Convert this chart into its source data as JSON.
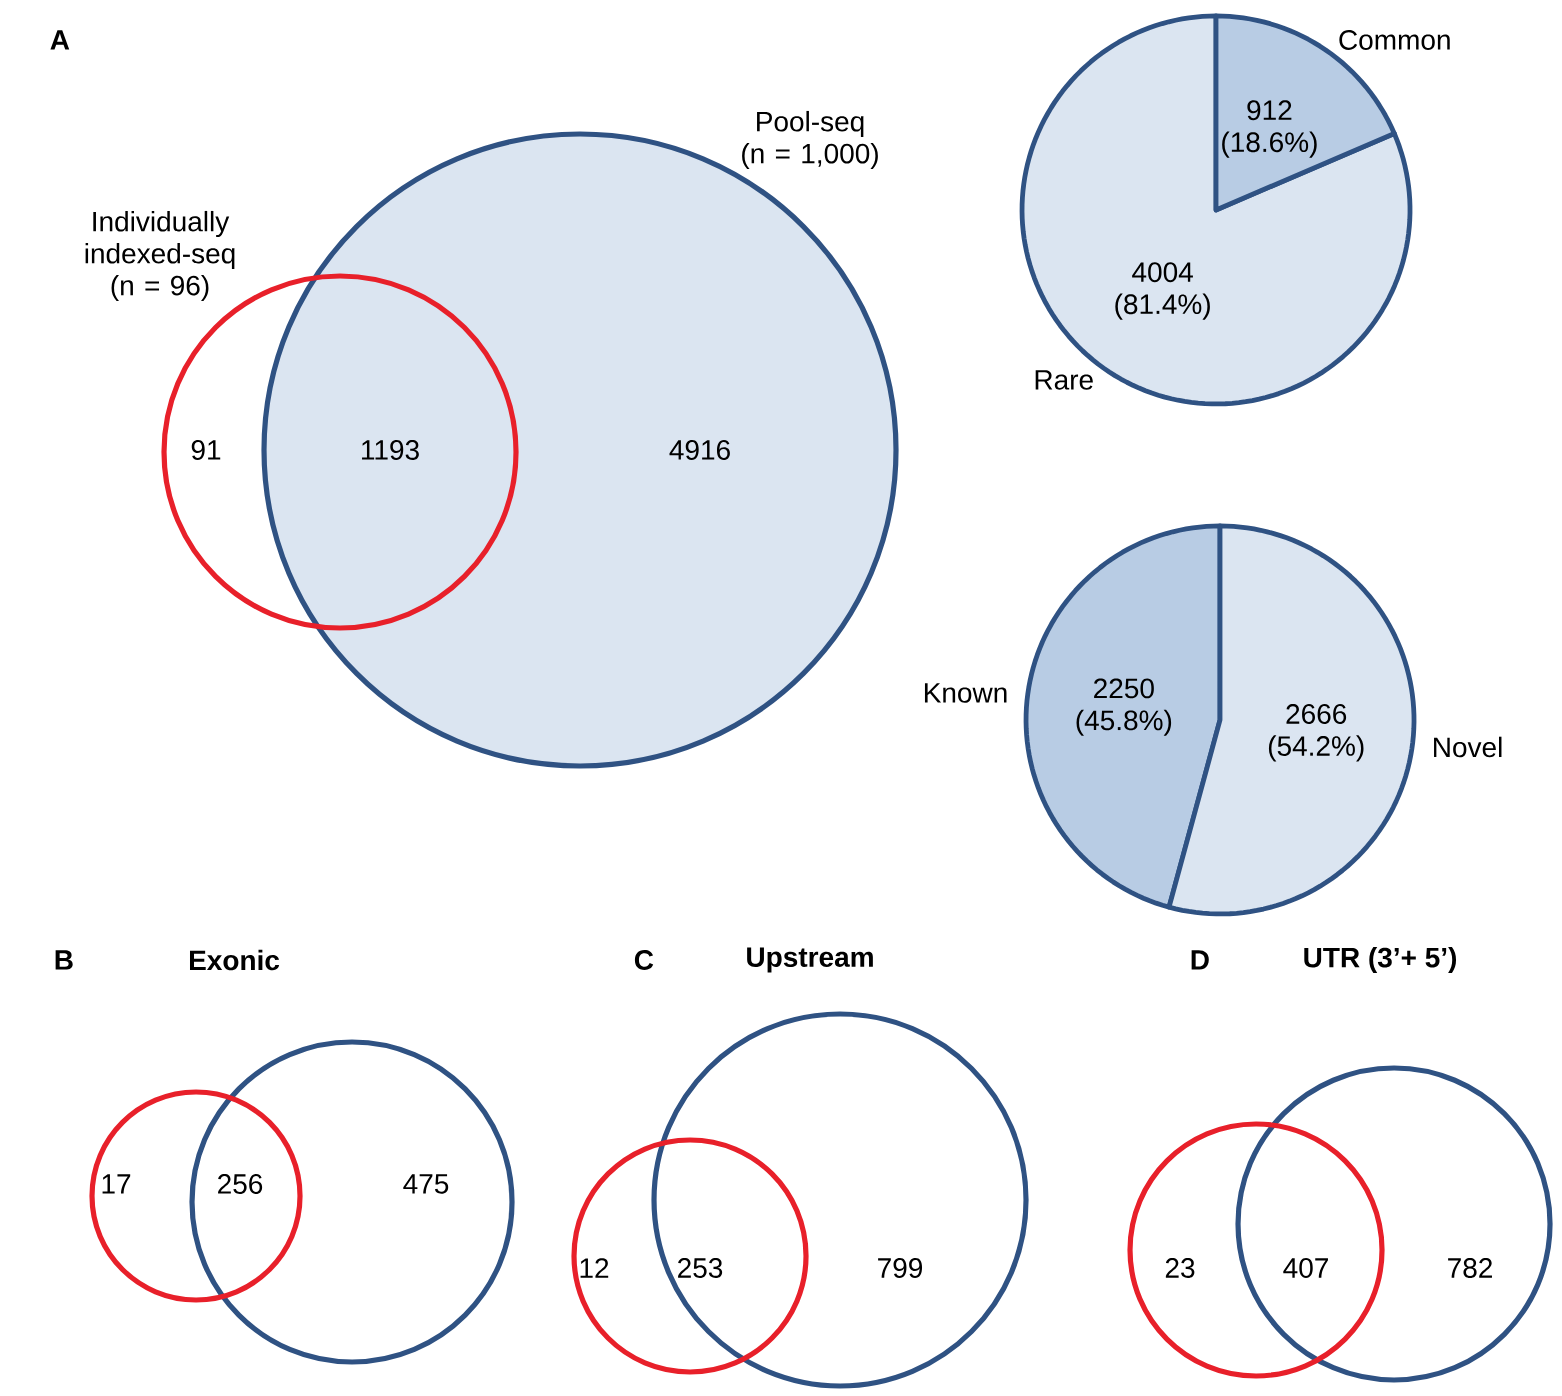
{
  "chart_data": [
    {
      "type": "other",
      "annotations": [
        "A",
        "Individually indexed-seq (n = 96)",
        "Pool-seq (n = 1,000)"
      ],
      "categories": [
        null,
        null,
        null
      ],
      "values": [
        91,
        1193,
        4916
      ],
      "data_labels": true,
      "colors": [
        "#ffffff",
        "#dbe5f1",
        "#dbe5f1"
      ]
    },
    {
      "type": "pie",
      "categories": [
        "Rare",
        "Common"
      ],
      "values": [
        4004,
        912
      ],
      "value_labels": [
        "4004 (81.4%)",
        "912 (18.6%)"
      ],
      "colors": [
        "#dbe5f1",
        "#b8cce4"
      ]
    },
    {
      "type": "pie",
      "categories": [
        "Known",
        "Novel"
      ],
      "values": [
        2250,
        2666
      ],
      "value_labels": [
        "2250 (45.8%)",
        "2666 (54.2%)"
      ],
      "colors": [
        "#b8cce4",
        "#dbe5f1"
      ]
    },
    {
      "type": "other",
      "title": "Exonic",
      "annotations": [
        "B"
      ],
      "categories": [
        null,
        null,
        null
      ],
      "values": [
        17,
        256,
        475
      ],
      "data_labels": true
    },
    {
      "type": "other",
      "title": "Upstream",
      "annotations": [
        "C"
      ],
      "categories": [
        null,
        null,
        null
      ],
      "values": [
        12,
        253,
        799
      ],
      "data_labels": true
    },
    {
      "type": "other",
      "title": "UTR (3’+ 5’)",
      "annotations": [
        "D"
      ],
      "categories": [
        null,
        null,
        null
      ],
      "values": [
        23,
        407,
        782
      ],
      "data_labels": true
    }
  ]
}
